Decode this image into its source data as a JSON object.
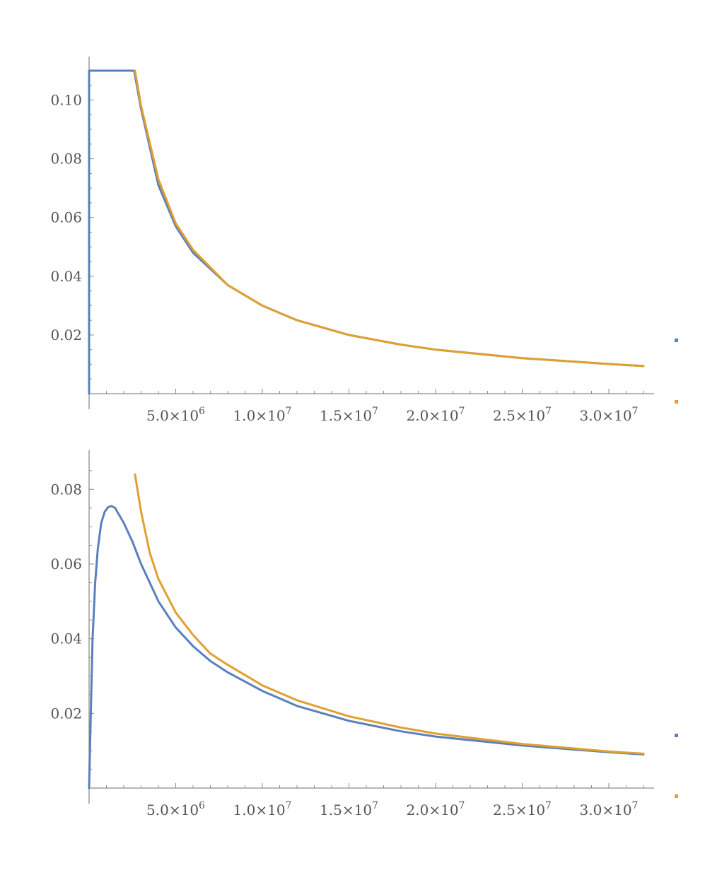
{
  "colors": {
    "series1": "#5b7fbd",
    "series2": "#e0a030",
    "axis": "#8c8c8c",
    "ticktext": "#555555"
  },
  "chart_data": [
    {
      "type": "line",
      "title": "",
      "xlabel": "",
      "ylabel": "",
      "xlim": [
        0,
        32000000
      ],
      "ylim": [
        0,
        0.11
      ],
      "grid": false,
      "x_ticks": [
        {
          "value": 5000000,
          "mantissa": "5.0",
          "exponent": "6"
        },
        {
          "value": 10000000,
          "mantissa": "1.0",
          "exponent": "7"
        },
        {
          "value": 15000000,
          "mantissa": "1.5",
          "exponent": "7"
        },
        {
          "value": 20000000,
          "mantissa": "2.0",
          "exponent": "7"
        },
        {
          "value": 25000000,
          "mantissa": "2.5",
          "exponent": "7"
        },
        {
          "value": 30000000,
          "mantissa": "3.0",
          "exponent": "7"
        }
      ],
      "y_ticks": [
        {
          "value": 0.02,
          "label": "0.02"
        },
        {
          "value": 0.04,
          "label": "0.04"
        },
        {
          "value": 0.06,
          "label": "0.06"
        },
        {
          "value": 0.08,
          "label": "0.08"
        },
        {
          "value": 0.1,
          "label": "0.10"
        }
      ],
      "series": [
        {
          "color": "#5b7fbd",
          "x": [
            0,
            0,
            2600000,
            3000000,
            4000000,
            5000000,
            6000000,
            8000000,
            10000000,
            12000000,
            15000000,
            18000000,
            20000000,
            25000000,
            30000000,
            32000000
          ],
          "y": [
            0,
            0.11,
            0.11,
            0.097,
            0.071,
            0.057,
            0.048,
            0.037,
            0.03,
            0.025,
            0.02,
            0.0167,
            0.015,
            0.0121,
            0.0101,
            0.0094
          ]
        },
        {
          "color": "#e0a030",
          "x": [
            2650000,
            3000000,
            4000000,
            5000000,
            6000000,
            8000000,
            10000000,
            12000000,
            15000000,
            18000000,
            20000000,
            25000000,
            30000000,
            32000000
          ],
          "y": [
            0.11,
            0.098,
            0.073,
            0.058,
            0.049,
            0.037,
            0.03,
            0.025,
            0.02,
            0.0167,
            0.015,
            0.0121,
            0.0101,
            0.0094
          ]
        }
      ]
    },
    {
      "type": "line",
      "title": "",
      "xlabel": "",
      "ylabel": "",
      "xlim": [
        0,
        32000000
      ],
      "ylim": [
        0,
        0.088
      ],
      "grid": false,
      "x_ticks": [
        {
          "value": 5000000,
          "mantissa": "5.0",
          "exponent": "6"
        },
        {
          "value": 10000000,
          "mantissa": "1.0",
          "exponent": "7"
        },
        {
          "value": 15000000,
          "mantissa": "1.5",
          "exponent": "7"
        },
        {
          "value": 20000000,
          "mantissa": "2.0",
          "exponent": "7"
        },
        {
          "value": 25000000,
          "mantissa": "2.5",
          "exponent": "7"
        },
        {
          "value": 30000000,
          "mantissa": "3.0",
          "exponent": "7"
        }
      ],
      "y_ticks": [
        {
          "value": 0.02,
          "label": "0.02"
        },
        {
          "value": 0.04,
          "label": "0.04"
        },
        {
          "value": 0.06,
          "label": "0.06"
        },
        {
          "value": 0.08,
          "label": "0.08"
        }
      ],
      "series": [
        {
          "color": "#5b7fbd",
          "x": [
            0,
            100000,
            200000,
            350000,
            500000,
            700000,
            900000,
            1100000,
            1300000,
            1500000,
            2000000,
            2500000,
            3000000,
            3500000,
            4000000,
            5000000,
            6000000,
            7000000,
            8000000,
            10000000,
            12000000,
            15000000,
            18000000,
            20000000,
            25000000,
            30000000,
            32000000
          ],
          "y": [
            0,
            0.02,
            0.04,
            0.055,
            0.064,
            0.071,
            0.074,
            0.0752,
            0.0755,
            0.075,
            0.071,
            0.066,
            0.06,
            0.055,
            0.05,
            0.043,
            0.038,
            0.034,
            0.031,
            0.026,
            0.022,
            0.018,
            0.0152,
            0.0138,
            0.0114,
            0.0096,
            0.009
          ]
        },
        {
          "color": "#e0a030",
          "x": [
            2650000,
            3000000,
            3500000,
            4000000,
            5000000,
            6000000,
            7000000,
            8000000,
            10000000,
            12000000,
            15000000,
            18000000,
            20000000,
            25000000,
            30000000,
            32000000
          ],
          "y": [
            0.084,
            0.074,
            0.063,
            0.056,
            0.047,
            0.041,
            0.036,
            0.033,
            0.0275,
            0.0235,
            0.0192,
            0.0162,
            0.0146,
            0.0118,
            0.0098,
            0.0092
          ]
        }
      ]
    }
  ]
}
